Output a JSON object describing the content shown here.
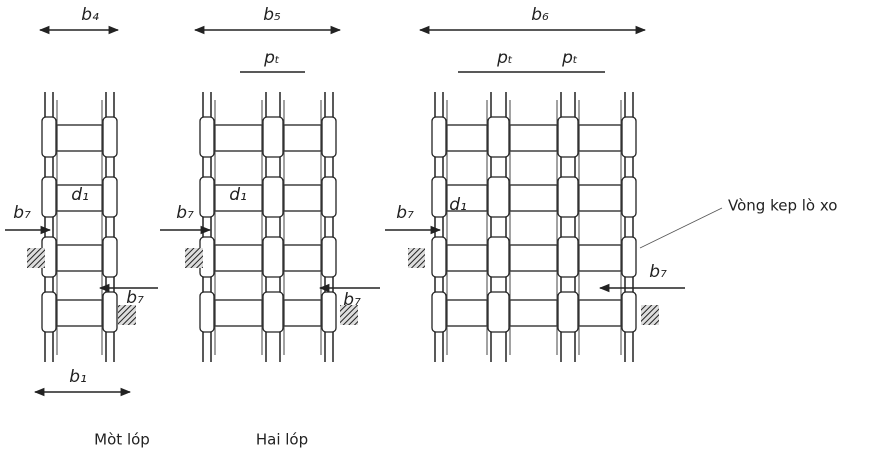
{
  "views": [
    {
      "width_label": "b₄",
      "diameter_label": "d₁",
      "offset_labels": [
        "b₇",
        "b₇"
      ],
      "inner_label": "b₁",
      "caption": "Mòt lóp"
    },
    {
      "width_label": "b₅",
      "pitch_labels": [
        "pₜ"
      ],
      "diameter_label": "d₁",
      "offset_labels": [
        "b₇",
        "b₇"
      ],
      "caption": "Hai lóp"
    },
    {
      "width_label": "b₆",
      "pitch_labels": [
        "pₜ",
        "pₜ"
      ],
      "diameter_label": "d₁",
      "offset_labels": [
        "b₇",
        "b₇"
      ]
    }
  ],
  "callout": "Vòng kep lò xo"
}
